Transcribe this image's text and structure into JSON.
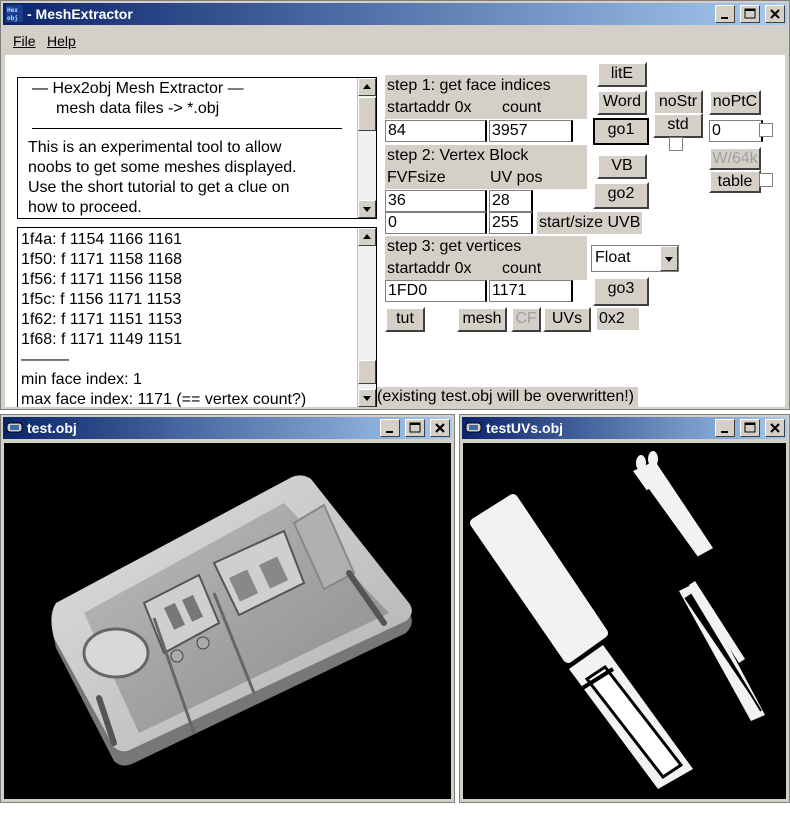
{
  "main_window": {
    "title": "- MeshExtractor",
    "menu": {
      "file": "File",
      "help": "Help"
    },
    "info_text": {
      "line1": "—   Hex2obj Mesh Extractor   —",
      "line2": "mesh data files -> *.obj",
      "para": [
        "This is an experimental tool to allow",
        "noobs to get some meshes displayed.",
        "Use the short tutorial to get a clue on",
        "how to proceed."
      ]
    },
    "output_lines": [
      "1f4a: f  1154 1166 1161",
      "1f50: f  1171 1158 1168",
      "1f56: f  1171 1156 1158",
      "1f5c: f  1156 1171 1153",
      "1f62: f  1171 1151 1153",
      "1f68: f  1171 1149 1151",
      "———",
      "min face index: 1",
      "max face index: 1171 (== vertex count?)"
    ],
    "step1": {
      "title": "step 1: get face indices",
      "addr_label": "startaddr 0x",
      "count_label": "count",
      "addr_value": "84",
      "count_value": "3957"
    },
    "step2": {
      "title": "step 2: Vertex Block",
      "fvf_label": "FVFsize",
      "uv_label": "UV pos",
      "fvf_value": "36",
      "uv_value": "28",
      "start_value": "0",
      "size_value": "255",
      "uvb_label": "start/size UVB"
    },
    "step3": {
      "title": "step 3: get vertices",
      "addr_label": "startaddr 0x",
      "count_label": "count",
      "addr_value": "1FD0",
      "count_value": "1171",
      "type_value": "Float"
    },
    "buttons": {
      "lite": "litE",
      "word": "Word",
      "nostr": "noStr",
      "noptc": "noPtC",
      "go1": "go1",
      "std": "std",
      "vb": "VB",
      "w64k": "W/64k",
      "table": "table",
      "go2": "go2",
      "go3": "go3",
      "tut": "tut",
      "mesh": "mesh",
      "cf": "CF",
      "uvs": "UVs"
    },
    "field_0": "0",
    "hex_label": "0x2",
    "warning": "(existing test.obj will be overwritten!)"
  },
  "obj_window": {
    "title": "test.obj"
  },
  "uv_window": {
    "title": "testUVs.obj"
  },
  "colors": {
    "titlebar_start": "#0a246a",
    "titlebar_end": "#a6caf0",
    "face": "#d4d0c8"
  }
}
